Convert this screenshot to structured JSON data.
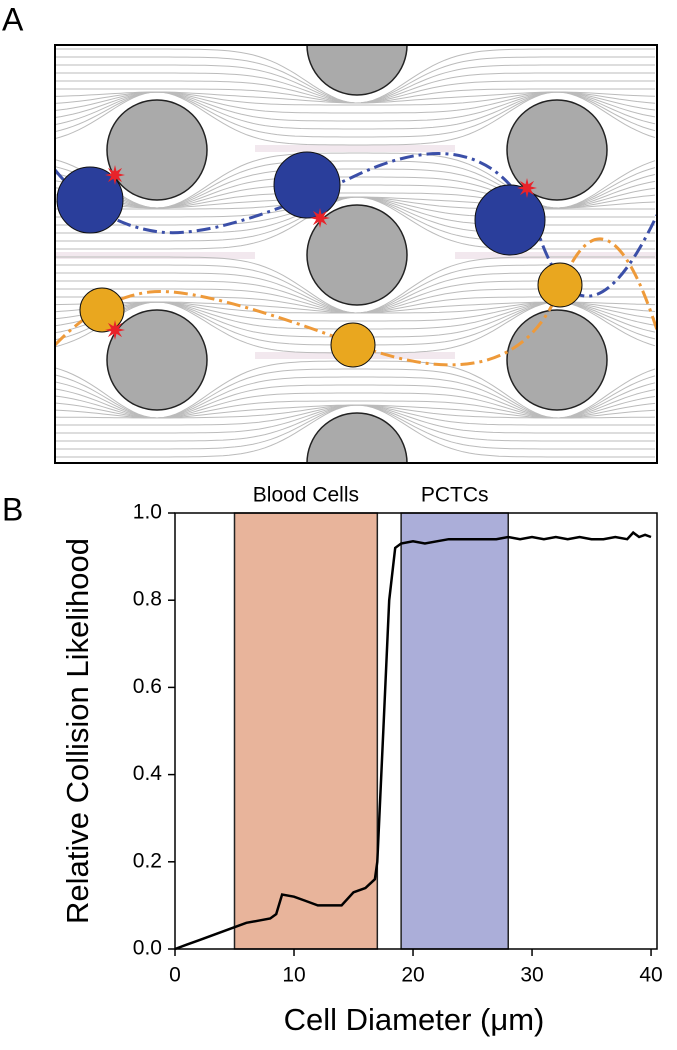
{
  "panels": {
    "a": "A",
    "b": "B"
  },
  "chart_data": {
    "type": "line",
    "xlabel": "Cell Diameter (μm)",
    "ylabel": "Relative Collision Likelihood",
    "xlim": [
      0,
      40.5
    ],
    "ylim": [
      0,
      1
    ],
    "xticks": [
      0,
      10,
      20,
      30,
      40
    ],
    "yticks": [
      {
        "value": 0,
        "label": "0.0"
      },
      0.2,
      0.4,
      0.6,
      0.8,
      {
        "value": 1,
        "label": "1.0"
      }
    ],
    "bands": [
      {
        "label": "Blood Cells",
        "x0": 5,
        "x1": 17,
        "color": "#e8b49b"
      },
      {
        "label": "PCTCs",
        "x0": 19,
        "x1": 28,
        "color": "#abaed9"
      }
    ],
    "x": [
      0,
      1,
      2,
      3,
      4,
      5,
      6,
      7,
      8,
      8.5,
      9,
      10,
      11,
      12,
      13,
      14,
      15,
      16,
      16.8,
      17,
      17.5,
      18,
      18.5,
      19,
      20,
      21,
      22,
      23,
      24,
      25,
      26,
      27,
      28,
      29,
      30,
      31,
      32,
      33,
      34,
      35,
      36,
      37,
      38,
      38.5,
      39,
      39.5,
      40
    ],
    "series": [
      {
        "color": "#000000",
        "values": [
          0,
          0.01,
          0.02,
          0.03,
          0.04,
          0.05,
          0.06,
          0.065,
          0.07,
          0.08,
          0.125,
          0.12,
          0.11,
          0.1,
          0.1,
          0.1,
          0.13,
          0.14,
          0.16,
          0.2,
          0.5,
          0.8,
          0.92,
          0.93,
          0.935,
          0.93,
          0.935,
          0.94,
          0.94,
          0.94,
          0.94,
          0.94,
          0.945,
          0.94,
          0.945,
          0.94,
          0.945,
          0.94,
          0.945,
          0.94,
          0.94,
          0.945,
          0.94,
          0.955,
          0.945,
          0.95,
          0.945
        ]
      }
    ]
  }
}
